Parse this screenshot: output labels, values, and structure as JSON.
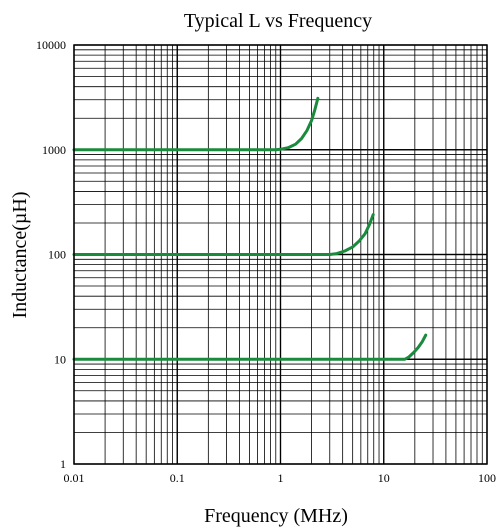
{
  "chart_data": {
    "type": "line",
    "title": "Typical L vs Frequency",
    "xlabel": "Frequency (MHz)",
    "ylabel": "Inductance(µH)",
    "x_scale": "log",
    "y_scale": "log",
    "xlim": [
      0.01,
      100
    ],
    "ylim": [
      1,
      10000
    ],
    "x_ticks": [
      "0.01",
      "0.1",
      "1",
      "10",
      "100"
    ],
    "y_ticks": [
      "1",
      "10",
      "100",
      "1000",
      "10000"
    ],
    "grid": true,
    "line_color": "#1a8a3c",
    "series": [
      {
        "x": [
          0.01,
          0.1,
          0.5,
          0.9,
          1.0,
          1.2,
          1.4,
          1.6,
          1.8,
          2.0,
          2.15,
          2.3
        ],
        "y": [
          1000,
          1000,
          1000,
          1000,
          1010,
          1050,
          1130,
          1280,
          1520,
          1900,
          2400,
          3100
        ]
      },
      {
        "x": [
          0.01,
          0.1,
          1.0,
          3.0,
          3.5,
          4.2,
          5.0,
          5.8,
          6.6,
          7.3,
          7.9
        ],
        "y": [
          100,
          100,
          100,
          100,
          102,
          108,
          118,
          135,
          158,
          195,
          240
        ]
      },
      {
        "x": [
          0.01,
          0.1,
          1.0,
          10,
          16,
          17.5,
          19.5,
          21.5,
          23.5,
          25.5
        ],
        "y": [
          10,
          10,
          10,
          10,
          10,
          10.5,
          11.6,
          12.9,
          14.6,
          17
        ]
      }
    ]
  }
}
